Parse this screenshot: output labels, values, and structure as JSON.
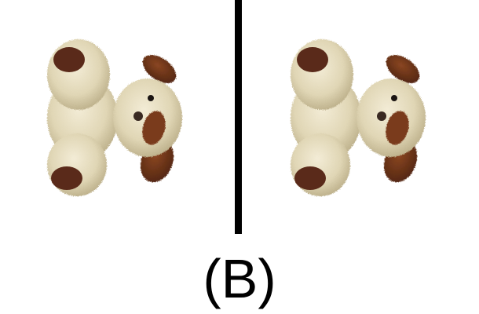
{
  "caption": "(B)",
  "colors": {
    "fur": "#e0d6b5",
    "fur_shadow": "#b8ab85",
    "fur_highlight": "#f3ecd6",
    "ear": "#6b3418",
    "paw_pad": "#5a2a1a",
    "eye": "#1a1412",
    "divider": "#000000",
    "background": "#ffffff"
  },
  "images": [
    {
      "subject": "plush-puppy-toy"
    },
    {
      "subject": "plush-puppy-toy"
    }
  ]
}
